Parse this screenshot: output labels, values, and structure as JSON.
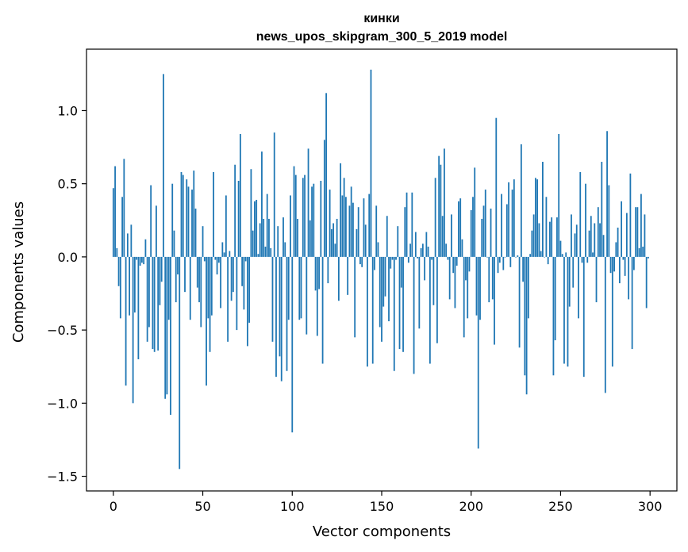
{
  "chart_data": {
    "type": "bar",
    "title": "кинки",
    "subtitle": "news_upos_skipgram_300_5_2019 model",
    "xlabel": "Vector components",
    "ylabel": "Components values",
    "xlim": [
      -15,
      315
    ],
    "ylim": [
      -1.6,
      1.42
    ],
    "xticks": [
      0,
      50,
      100,
      150,
      200,
      250,
      300
    ],
    "yticks": [
      -1.5,
      -1.0,
      -0.5,
      0.0,
      0.5,
      1.0
    ],
    "xtick_labels": [
      "0",
      "50",
      "100",
      "150",
      "200",
      "250",
      "300"
    ],
    "ytick_labels": [
      "−1.5",
      "−1.0",
      "−0.5",
      "0.0",
      "0.5",
      "1.0"
    ],
    "grid": false,
    "bar_color": "#1f77b4",
    "values": [
      0.47,
      0.62,
      0.06,
      -0.2,
      -0.42,
      0.41,
      0.67,
      -0.88,
      0.16,
      -0.4,
      0.22,
      -1.0,
      -0.38,
      -0.02,
      -0.7,
      -0.06,
      -0.04,
      -0.05,
      0.12,
      -0.58,
      -0.48,
      0.49,
      -0.63,
      -0.65,
      0.35,
      -0.64,
      -0.33,
      -0.17,
      1.25,
      -0.97,
      -0.94,
      -0.43,
      -1.08,
      0.5,
      0.18,
      -0.31,
      -0.12,
      -1.45,
      0.58,
      0.56,
      -0.24,
      0.53,
      0.48,
      -0.43,
      0.46,
      0.59,
      0.33,
      -0.21,
      -0.31,
      -0.48,
      0.21,
      -0.03,
      -0.88,
      -0.42,
      -0.65,
      -0.4,
      0.58,
      -0.02,
      -0.12,
      -0.04,
      -0.35,
      0.1,
      0.03,
      0.42,
      -0.58,
      0.04,
      -0.3,
      -0.24,
      0.63,
      -0.5,
      0.52,
      0.84,
      -0.2,
      -0.36,
      -0.03,
      -0.61,
      -0.45,
      0.6,
      0.18,
      0.38,
      0.39,
      0.02,
      0.23,
      0.72,
      0.26,
      0.07,
      0.43,
      0.26,
      0.06,
      -0.58,
      0.85,
      -0.82,
      0.21,
      -0.68,
      -0.85,
      0.27,
      0.1,
      -0.78,
      -0.43,
      0.42,
      -1.2,
      0.62,
      0.56,
      0.26,
      -0.43,
      -0.42,
      0.54,
      0.56,
      -0.53,
      0.74,
      0.25,
      0.48,
      0.5,
      -0.23,
      -0.54,
      -0.22,
      0.52,
      -0.73,
      0.8,
      1.12,
      -0.18,
      0.46,
      0.19,
      0.23,
      0.09,
      0.26,
      -0.3,
      0.64,
      0.42,
      0.54,
      0.41,
      -0.26,
      0.35,
      0.48,
      0.37,
      -0.55,
      0.19,
      0.34,
      -0.05,
      -0.07,
      0.4,
      0.22,
      -0.75,
      0.43,
      1.28,
      -0.73,
      -0.09,
      0.35,
      0.1,
      -0.48,
      -0.58,
      -0.34,
      -0.27,
      0.28,
      -0.44,
      -0.08,
      -0.02,
      -0.78,
      -0.02,
      0.21,
      -0.63,
      -0.21,
      -0.65,
      0.34,
      0.44,
      -0.04,
      0.09,
      0.44,
      -0.8,
      0.17,
      -0.01,
      -0.49,
      0.06,
      0.09,
      -0.16,
      0.17,
      0.07,
      -0.73,
      -0.02,
      -0.33,
      0.54,
      -0.59,
      0.69,
      0.63,
      0.28,
      0.74,
      0.09,
      -0.02,
      -0.29,
      0.29,
      -0.11,
      -0.35,
      -0.06,
      0.38,
      0.4,
      0.12,
      -0.55,
      -0.16,
      -0.42,
      -0.1,
      0.32,
      0.41,
      0.61,
      -0.4,
      -1.31,
      -0.43,
      0.26,
      0.35,
      0.46,
      0.0,
      -0.31,
      0.33,
      -0.29,
      -0.6,
      0.95,
      -0.11,
      -0.04,
      0.43,
      -0.09,
      0.0,
      0.36,
      0.51,
      -0.07,
      0.46,
      0.53,
      0.0,
      0.01,
      -0.62,
      0.77,
      -0.17,
      -0.81,
      -0.94,
      -0.42,
      0.02,
      0.18,
      0.29,
      0.54,
      0.53,
      0.23,
      0.04,
      0.65,
      0.0,
      0.41,
      -0.05,
      0.24,
      0.27,
      -0.81,
      -0.57,
      0.27,
      0.84,
      0.11,
      0.02,
      -0.73,
      0.03,
      -0.75,
      -0.34,
      0.29,
      -0.21,
      0.16,
      0.22,
      -0.42,
      0.58,
      -0.04,
      -0.82,
      0.5,
      -0.04,
      0.18,
      0.28,
      0.03,
      0.23,
      -0.31,
      0.34,
      0.23,
      0.65,
      0.15,
      -0.93,
      0.86,
      0.49,
      -0.11,
      -0.75,
      -0.1,
      0.1,
      0.2,
      -0.18,
      0.38,
      -0.02,
      -0.13,
      0.3,
      -0.29,
      0.57,
      -0.63,
      -0.09,
      0.34,
      0.34,
      0.06,
      0.43,
      0.07,
      0.29,
      -0.35,
      -0.01
    ]
  }
}
